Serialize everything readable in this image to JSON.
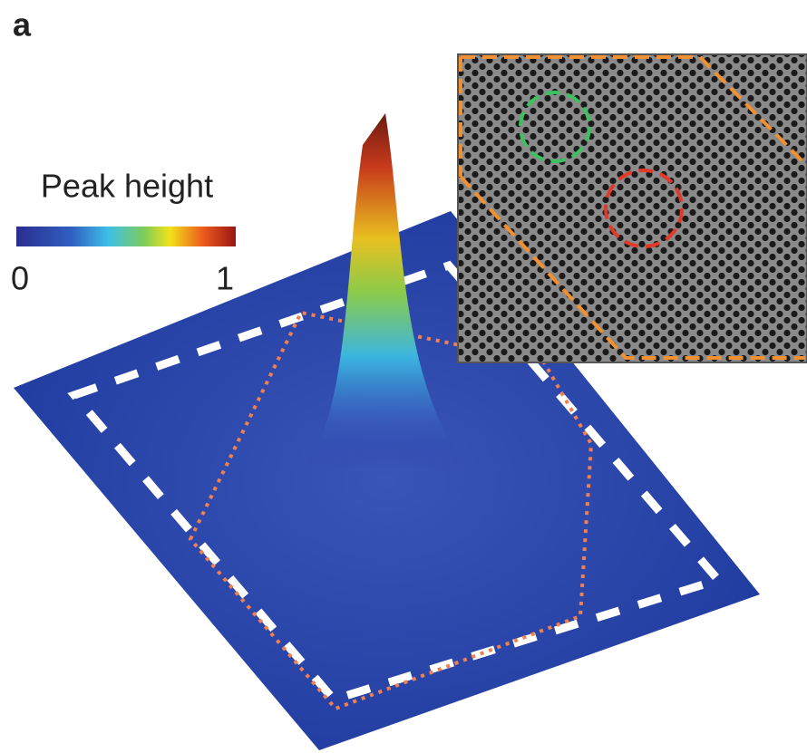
{
  "panel_label": "a",
  "colorbar": {
    "title": "Peak height",
    "min_label": "0",
    "max_label": "1"
  }
}
